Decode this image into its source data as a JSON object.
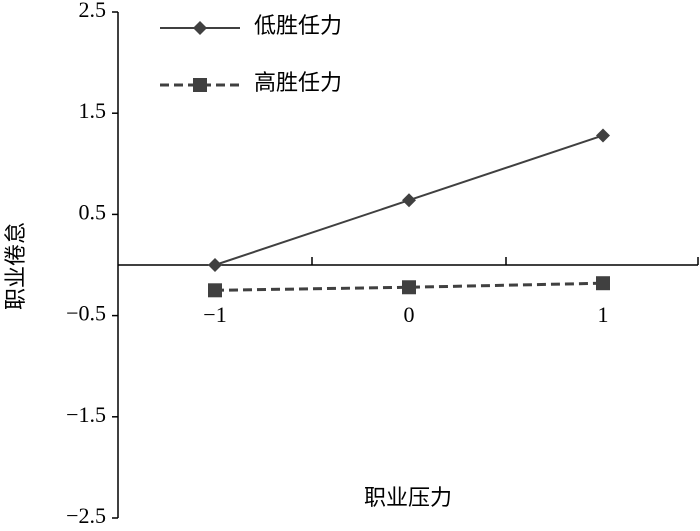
{
  "chart_data": {
    "type": "line",
    "x_label": "职业压力",
    "y_label": "职业倦怠",
    "categories": [
      "−1",
      "0",
      "1"
    ],
    "series": [
      {
        "name": "低胜任力",
        "color": "#404040",
        "dash": false,
        "marker": "diamond",
        "values": [
          0,
          0.64,
          1.28
        ]
      },
      {
        "name": "高胜任力",
        "color": "#404040",
        "dash": true,
        "marker": "square",
        "values": [
          -0.25,
          -0.22,
          -0.18
        ]
      }
    ],
    "ylim": [
      -2.5,
      2.5
    ],
    "yticks": [
      {
        "value": -2.5,
        "label": "−2.5"
      },
      {
        "value": -1.5,
        "label": "−1.5"
      },
      {
        "value": -0.5,
        "label": "−0.5"
      },
      0.5,
      1.5,
      2.5
    ],
    "legend": "top-left"
  }
}
